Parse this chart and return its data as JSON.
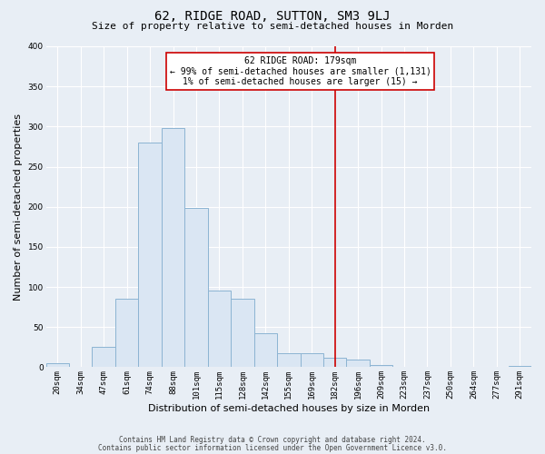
{
  "title": "62, RIDGE ROAD, SUTTON, SM3 9LJ",
  "subtitle": "Size of property relative to semi-detached houses in Morden",
  "xlabel": "Distribution of semi-detached houses by size in Morden",
  "ylabel": "Number of semi-detached properties",
  "bar_labels": [
    "20sqm",
    "34sqm",
    "47sqm",
    "61sqm",
    "74sqm",
    "88sqm",
    "101sqm",
    "115sqm",
    "128sqm",
    "142sqm",
    "155sqm",
    "169sqm",
    "182sqm",
    "196sqm",
    "209sqm",
    "223sqm",
    "237sqm",
    "250sqm",
    "264sqm",
    "277sqm",
    "291sqm"
  ],
  "bar_values": [
    5,
    0,
    25,
    85,
    280,
    298,
    198,
    95,
    85,
    42,
    18,
    18,
    12,
    10,
    3,
    0,
    0,
    0,
    0,
    0,
    2
  ],
  "bar_color": "#dae6f3",
  "bar_edge_color": "#8cb4d2",
  "vline_x_index": 12,
  "vline_color": "#cc0000",
  "annotation_title": "62 RIDGE ROAD: 179sqm",
  "annotation_line1": "← 99% of semi-detached houses are smaller (1,131)",
  "annotation_line2": "1% of semi-detached houses are larger (15) →",
  "annotation_box_color": "#ffffff",
  "annotation_box_edge": "#cc0000",
  "ylim": [
    0,
    400
  ],
  "yticks": [
    0,
    50,
    100,
    150,
    200,
    250,
    300,
    350,
    400
  ],
  "footer1": "Contains HM Land Registry data © Crown copyright and database right 2024.",
  "footer2": "Contains public sector information licensed under the Open Government Licence v3.0.",
  "background_color": "#e8eef5",
  "grid_color": "#ffffff",
  "title_fontsize": 10,
  "subtitle_fontsize": 8,
  "ylabel_fontsize": 8,
  "xlabel_fontsize": 8,
  "tick_fontsize": 6.5,
  "footer_fontsize": 5.5,
  "annotation_fontsize": 7
}
